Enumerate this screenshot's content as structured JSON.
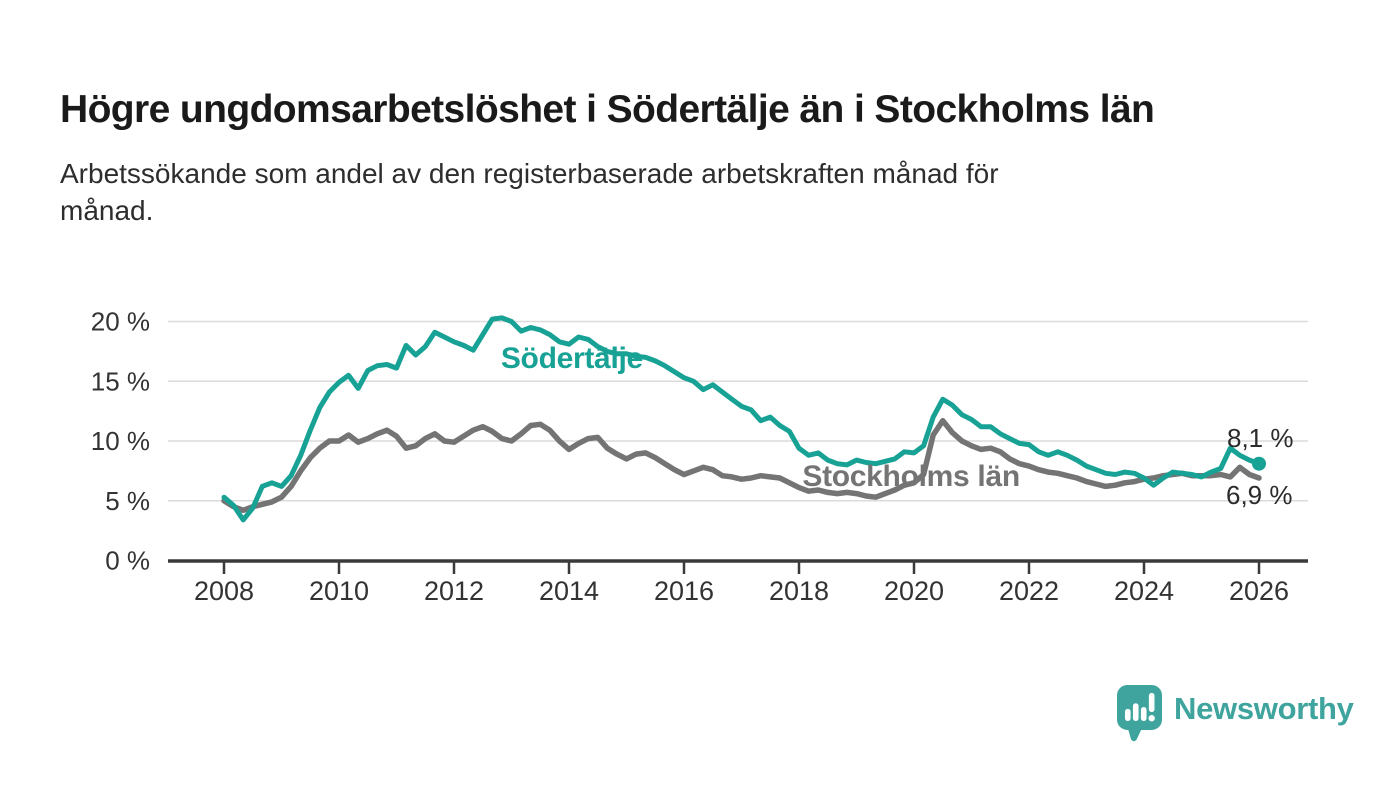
{
  "chart_data": {
    "type": "line",
    "title": "Högre ungdomsarbetslöshet i Södertälje än i Stockholms län",
    "subtitle": "Arbetssökande som andel av den registerbaserade arbetskraften månad för månad.",
    "subtitle_lines": [
      "Arbetssökande som andel av den registerbaserade arbetskraften månad för",
      "månad."
    ],
    "unit": "%",
    "x_sampling": {
      "start_year": 2008,
      "points_per_year": 6,
      "end_year": 2026
    },
    "x_ticks": [
      2008,
      2010,
      2012,
      2014,
      2016,
      2018,
      2020,
      2022,
      2024,
      2026
    ],
    "x_tick_labels": [
      "2008",
      "2010",
      "2012",
      "2014",
      "2016",
      "2018",
      "2020",
      "2022",
      "2024",
      "2026"
    ],
    "y_ticks": [
      0,
      5,
      10,
      15,
      20
    ],
    "y_tick_labels": [
      "0 %",
      "5 %",
      "10 %",
      "15 %",
      "20 %"
    ],
    "ylim": [
      0,
      21.5
    ],
    "grid": "horizontal",
    "legend": "inline-labels",
    "axis_color": "#3a3a3a",
    "grid_color": "#dbdbdb",
    "tick_label_color": "#333333",
    "value_label_color": "#2b2b2b",
    "series": [
      {
        "name": "Södertälje",
        "color": "#17a295",
        "end_label": "8,1 %",
        "end_value": 8.1,
        "end_dot": true,
        "label_pos": {
          "x": 2014.05,
          "y": 16.9
        },
        "values": [
          5.3,
          4.6,
          3.4,
          4.4,
          6.2,
          6.5,
          6.2,
          7.1,
          8.8,
          10.9,
          12.8,
          14.1,
          14.9,
          15.5,
          14.4,
          15.9,
          16.3,
          16.4,
          16.1,
          18.0,
          17.2,
          17.9,
          19.1,
          18.7,
          18.3,
          18.0,
          17.6,
          18.9,
          20.2,
          20.3,
          20.0,
          19.2,
          19.5,
          19.3,
          18.9,
          18.3,
          18.1,
          18.7,
          18.5,
          17.9,
          17.5,
          17.3,
          17.3,
          17.1,
          17.0,
          16.7,
          16.3,
          15.8,
          15.3,
          15.0,
          14.3,
          14.7,
          14.1,
          13.5,
          12.9,
          12.6,
          11.7,
          12.0,
          11.3,
          10.8,
          9.4,
          8.8,
          9.0,
          8.4,
          8.1,
          8.0,
          8.4,
          8.2,
          8.1,
          8.3,
          8.5,
          9.1,
          9.0,
          9.6,
          12.0,
          13.5,
          13.0,
          12.2,
          11.8,
          11.2,
          11.2,
          10.6,
          10.2,
          9.8,
          9.7,
          9.1,
          8.8,
          9.1,
          8.8,
          8.4,
          7.9,
          7.6,
          7.3,
          7.2,
          7.4,
          7.3,
          6.9,
          6.3,
          6.9,
          7.4,
          7.3,
          7.2,
          7.0,
          7.4,
          7.7,
          9.4,
          8.8,
          8.4,
          8.1
        ]
      },
      {
        "name": "Stockholms län",
        "color": "#747474",
        "end_label": "6,9 %",
        "end_value": 6.9,
        "end_dot": false,
        "label_pos": {
          "x": 2019.95,
          "y": 7.0
        },
        "values": [
          5.0,
          4.5,
          4.2,
          4.5,
          4.7,
          4.9,
          5.3,
          6.2,
          7.5,
          8.6,
          9.4,
          10.0,
          10.0,
          10.5,
          9.9,
          10.2,
          10.6,
          10.9,
          10.4,
          9.4,
          9.6,
          10.2,
          10.6,
          10.0,
          9.9,
          10.4,
          10.9,
          11.2,
          10.8,
          10.2,
          10.0,
          10.6,
          11.3,
          11.4,
          10.9,
          10.0,
          9.3,
          9.8,
          10.2,
          10.3,
          9.4,
          8.9,
          8.5,
          8.9,
          9.0,
          8.6,
          8.1,
          7.6,
          7.2,
          7.5,
          7.8,
          7.6,
          7.1,
          7.0,
          6.8,
          6.9,
          7.1,
          7.0,
          6.9,
          6.5,
          6.1,
          5.8,
          5.9,
          5.7,
          5.6,
          5.7,
          5.6,
          5.4,
          5.3,
          5.6,
          5.9,
          6.3,
          6.5,
          7.2,
          10.5,
          11.7,
          10.7,
          10.0,
          9.6,
          9.3,
          9.4,
          9.1,
          8.5,
          8.1,
          7.9,
          7.6,
          7.4,
          7.3,
          7.1,
          6.9,
          6.6,
          6.4,
          6.2,
          6.3,
          6.5,
          6.6,
          6.8,
          6.9,
          7.1,
          7.2,
          7.3,
          7.1,
          7.1,
          7.1,
          7.2,
          7.0,
          7.8,
          7.2,
          6.9
        ]
      }
    ]
  },
  "footer": {
    "brand": "Newsworthy",
    "brand_color": "#3ea49d"
  }
}
